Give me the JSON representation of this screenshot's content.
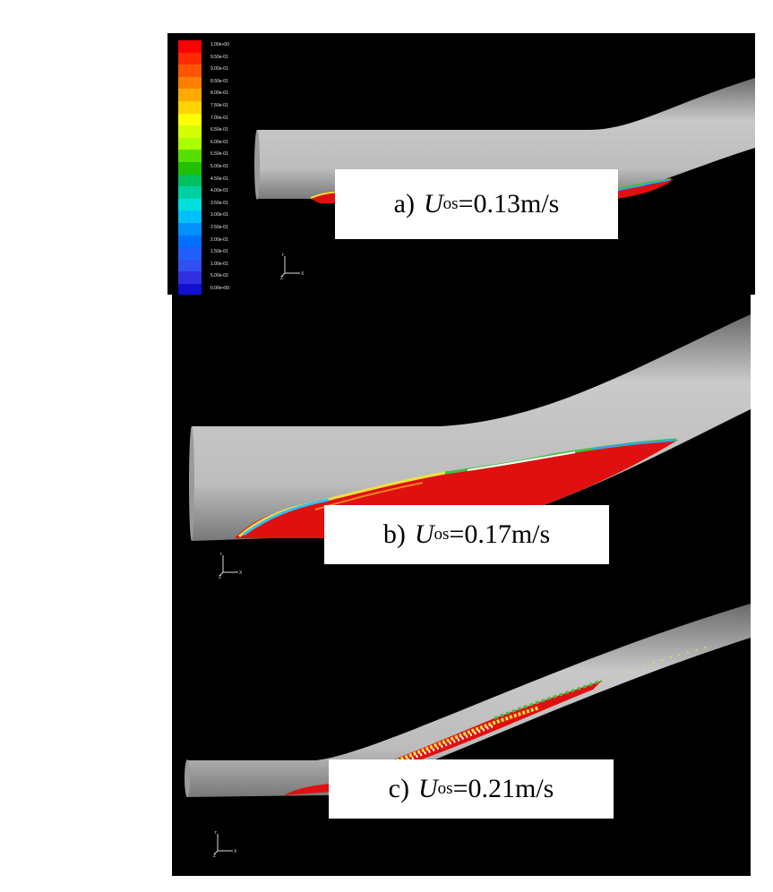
{
  "panels": [
    {
      "id": "a",
      "caption_prefix": "a)",
      "symbol": "U",
      "subscript": "os",
      "value": "=0.13m/s"
    },
    {
      "id": "b",
      "caption_prefix": "b)",
      "symbol": "U",
      "subscript": "os",
      "value": "=0.17m/s"
    },
    {
      "id": "c",
      "caption_prefix": "c)",
      "symbol": "U",
      "subscript": "os",
      "value": "=0.21m/s"
    }
  ],
  "legend": {
    "labels": [
      "1.00e+00",
      "9.50e-01",
      "9.00e-01",
      "8.50e-01",
      "8.00e-01",
      "7.50e-01",
      "7.00e-01",
      "6.50e-01",
      "6.00e-01",
      "5.50e-01",
      "5.00e-01",
      "4.50e-01",
      "4.00e-01",
      "3.50e-01",
      "3.00e-01",
      "2.50e-01",
      "2.00e-01",
      "1.50e-01",
      "1.00e-01",
      "5.00e-02",
      "0.00e+00"
    ],
    "colors": [
      "#ff0000",
      "#ff2a00",
      "#ff5500",
      "#ff8000",
      "#ffaa00",
      "#ffd400",
      "#ffff00",
      "#d4ff00",
      "#aaff00",
      "#55e000",
      "#20c000",
      "#00c060",
      "#00d0a0",
      "#00e0e0",
      "#00c0ff",
      "#0090ff",
      "#0070ff",
      "#2060ff",
      "#3050f0",
      "#3030e0",
      "#1010d0"
    ]
  },
  "axis_triad": {
    "y_label": "Y",
    "z_label": "Z",
    "x_label": "X"
  }
}
